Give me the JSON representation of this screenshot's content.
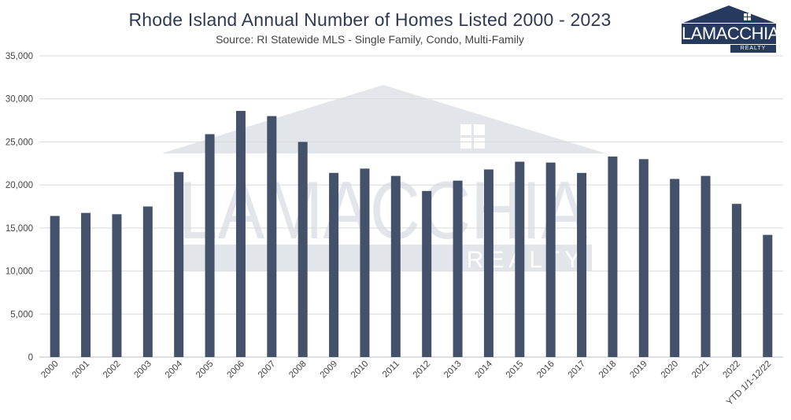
{
  "chart_data": {
    "type": "bar",
    "title": "Rhode Island Annual Number of Homes Listed 2000 - 2023",
    "subtitle": "Source: RI Statewide MLS - Single Family, Condo, Multi-Family",
    "xlabel": "",
    "ylabel": "",
    "ylim": [
      0,
      35000
    ],
    "yticks": [
      "0",
      "5,000",
      "10,000",
      "15,000",
      "20,000",
      "25,000",
      "30,000",
      "35,000"
    ],
    "ytick_values": [
      0,
      5000,
      10000,
      15000,
      20000,
      25000,
      30000,
      35000
    ],
    "grid": true,
    "bar_color": "#44516a",
    "categories": [
      "2000",
      "2001",
      "2002",
      "2003",
      "2004",
      "2005",
      "2006",
      "2007",
      "2008",
      "2009",
      "2010",
      "2011",
      "2012",
      "2013",
      "2014",
      "2015",
      "2016",
      "2017",
      "2018",
      "2019",
      "2020",
      "2021",
      "2022",
      "YTD 1/1-12/22"
    ],
    "values": [
      16400,
      16750,
      16600,
      17500,
      21500,
      25900,
      28600,
      28000,
      25000,
      21400,
      21900,
      21050,
      19300,
      20500,
      21800,
      22700,
      22600,
      21400,
      23300,
      23000,
      20700,
      21050,
      17800,
      14200
    ]
  },
  "logo": {
    "brand": "LAMACCHIA",
    "sub": "REALTY"
  },
  "watermark": {
    "brand": "LAMACCHIA",
    "sub": "REALTY"
  }
}
